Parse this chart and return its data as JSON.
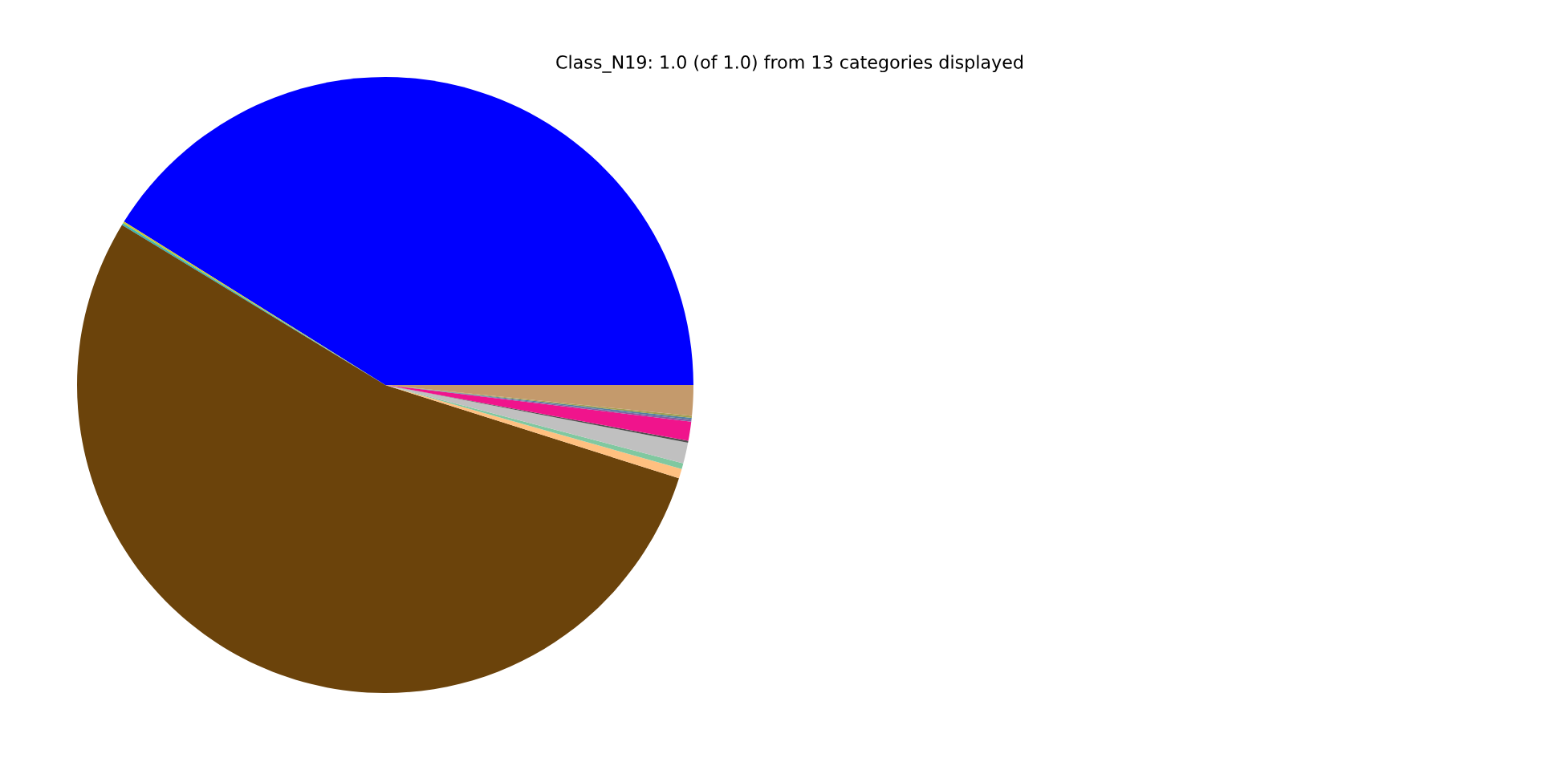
{
  "chart_data": {
    "type": "pie",
    "title": "Class_N19: 1.0 (of 1.0) from 13 categories displayed",
    "categories": [
      null,
      null,
      null,
      null,
      null,
      null,
      null,
      null,
      null,
      null,
      null,
      null,
      null
    ],
    "values": [
      41.1,
      0.1,
      0.1,
      53.8,
      0.5,
      0.3,
      1.1,
      0.1,
      1.0,
      0.1,
      0.1,
      0.1,
      1.6
    ],
    "colors": [
      "#0000ff",
      "#c8c832",
      "#3cb4b4",
      "#6b430b",
      "#ffc080",
      "#80c8a0",
      "#c0c0c0",
      "#505050",
      "#f0148c",
      "#8060a0",
      "#5080a0",
      "#a0a050",
      "#c49a6c"
    ]
  }
}
